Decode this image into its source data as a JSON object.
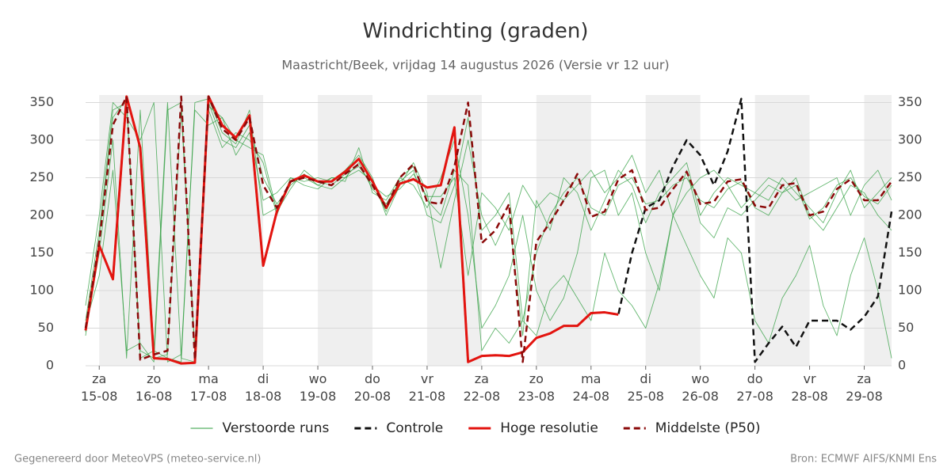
{
  "chart_data": {
    "type": "line",
    "title": "Windrichting (graden)",
    "subtitle": "Maastricht/Beek, vrijdag 14 augustus 2026 (Versie vr 12 uur)",
    "footer_left": "Gegenereerd door MeteoVPS (meteo-service.nl)",
    "footer_right": "Bron: ECMWF AIFS/KNMI Ens",
    "x": [
      -0.25,
      0,
      0.25,
      0.5,
      0.75,
      1,
      1.25,
      1.5,
      1.75,
      2,
      2.25,
      2.5,
      2.75,
      3,
      3.25,
      3.5,
      3.75,
      4,
      4.25,
      4.5,
      4.75,
      5,
      5.25,
      5.5,
      5.75,
      6,
      6.25,
      6.5,
      6.75,
      7,
      7.25,
      7.5,
      7.75,
      8,
      8.25,
      8.5,
      8.75,
      9,
      9.25,
      9.5,
      9.75,
      10,
      10.25,
      10.5,
      10.75,
      11,
      11.25,
      11.5,
      11.75,
      12,
      12.25,
      12.5,
      12.75,
      13,
      13.25,
      13.5,
      13.75,
      14,
      14.25,
      14.5
    ],
    "xlim": [
      -0.25,
      14.5
    ],
    "xticks": [
      {
        "value": 0,
        "label": "za\n15-08"
      },
      {
        "value": 1,
        "label": "zo\n16-08"
      },
      {
        "value": 2,
        "label": "ma\n17-08"
      },
      {
        "value": 3,
        "label": "di\n18-08"
      },
      {
        "value": 4,
        "label": "wo\n19-08"
      },
      {
        "value": 5,
        "label": "do\n20-08"
      },
      {
        "value": 6,
        "label": "vr\n21-08"
      },
      {
        "value": 7,
        "label": "za\n22-08"
      },
      {
        "value": 8,
        "label": "zo\n23-08"
      },
      {
        "value": 9,
        "label": "ma\n24-08"
      },
      {
        "value": 10,
        "label": "di\n25-08"
      },
      {
        "value": 11,
        "label": "wo\n26-08"
      },
      {
        "value": 12,
        "label": "do\n27-08"
      },
      {
        "value": 13,
        "label": "vr\n28-08"
      },
      {
        "value": 14,
        "label": "za\n29-08"
      }
    ],
    "ylim": [
      0,
      360
    ],
    "yticks": [
      0,
      50,
      100,
      150,
      200,
      250,
      300,
      350
    ],
    "grid": true,
    "ensemble": {
      "name": "Verstoorde runs",
      "color": "#2e9e3e",
      "members": [
        [
          60,
          180,
          340,
          350,
          20,
          10,
          15,
          340,
          20,
          350,
          300,
          290,
          320,
          250,
          215,
          240,
          255,
          240,
          235,
          250,
          270,
          235,
          215,
          245,
          260,
          200,
          190,
          240,
          330,
          180,
          200,
          230,
          60,
          150,
          200,
          230,
          250,
          210,
          200,
          240,
          250,
          215,
          220,
          240,
          250,
          220,
          210,
          235,
          245,
          210,
          200,
          230,
          240,
          195,
          210,
          240,
          250,
          225,
          215,
          240
        ],
        [
          45,
          150,
          300,
          10,
          340,
          20,
          350,
          10,
          5,
          340,
          290,
          310,
          300,
          270,
          200,
          250,
          245,
          250,
          245,
          260,
          280,
          250,
          200,
          240,
          270,
          230,
          130,
          220,
          300,
          200,
          160,
          200,
          40,
          220,
          180,
          250,
          230,
          180,
          220,
          260,
          240,
          190,
          230,
          250,
          270,
          200,
          230,
          250,
          240,
          230,
          220,
          250,
          230,
          210,
          190,
          230,
          260,
          210,
          230,
          250
        ],
        [
          80,
          200,
          350,
          330,
          300,
          350,
          5,
          15,
          340,
          320,
          330,
          280,
          310,
          220,
          230,
          250,
          240,
          235,
          250,
          245,
          290,
          230,
          220,
          250,
          240,
          210,
          250,
          300,
          200,
          50,
          80,
          120,
          200,
          100,
          60,
          90,
          150,
          250,
          260,
          200,
          230,
          150,
          100,
          200,
          260,
          190,
          170,
          210,
          200,
          220,
          240,
          230,
          250,
          200,
          180,
          210,
          240,
          230,
          200,
          180
        ],
        [
          55,
          120,
          260,
          20,
          30,
          5,
          340,
          350,
          15,
          345,
          330,
          300,
          290,
          280,
          205,
          235,
          260,
          245,
          240,
          255,
          265,
          240,
          225,
          235,
          255,
          225,
          225,
          250,
          120,
          230,
          210,
          180,
          240,
          210,
          230,
          220,
          240,
          260,
          230,
          250,
          280,
          230,
          260,
          200,
          230,
          250,
          260,
          240,
          210,
          230,
          250,
          240,
          220,
          230,
          240,
          250,
          200,
          240,
          260,
          220
        ],
        [
          40,
          170,
          330,
          355,
          10,
          20,
          10,
          5,
          350,
          355,
          310,
          295,
          340,
          200,
          210,
          245,
          250,
          240,
          250,
          250,
          260,
          245,
          205,
          250,
          265,
          220,
          200,
          260,
          240,
          20,
          50,
          30,
          60,
          40,
          100,
          120,
          90,
          60,
          150,
          100,
          80,
          50,
          110,
          200,
          160,
          120,
          90,
          170,
          150,
          60,
          30,
          90,
          120,
          160,
          80,
          40,
          120,
          170,
          100,
          10
        ]
      ]
    },
    "series": [
      {
        "name": "Controle",
        "color": "#111111",
        "dash": true,
        "values": [
          47,
          160,
          115,
          358,
          290,
          10,
          9,
          3,
          4,
          358,
          320,
          303,
          333,
          133,
          205,
          245,
          253,
          245,
          245,
          258,
          275,
          245,
          210,
          242,
          248,
          237,
          240,
          317,
          5,
          13,
          14,
          13,
          18,
          37,
          43,
          53,
          53,
          70,
          71,
          68,
          150,
          210,
          220,
          265,
          300,
          280,
          240,
          285,
          355,
          5,
          30,
          52,
          25,
          60,
          60,
          60,
          48,
          65,
          92,
          205
        ]
      },
      {
        "name": "Hoge resolutie",
        "color": "#e3140f",
        "dash": false,
        "values": [
          47,
          160,
          115,
          358,
          290,
          10,
          9,
          3,
          4,
          358,
          320,
          303,
          333,
          133,
          205,
          245,
          253,
          245,
          245,
          258,
          275,
          245,
          210,
          242,
          248,
          237,
          240,
          317,
          5,
          13,
          14,
          13,
          18,
          37,
          43,
          53,
          53,
          70,
          71,
          68,
          null,
          null,
          null,
          null,
          null,
          null,
          null,
          null,
          null,
          null,
          null,
          null,
          null,
          null,
          null,
          null,
          null,
          null,
          null,
          null
        ]
      },
      {
        "name": "Middelste (P50)",
        "color": "#8b0a0a",
        "dash": true,
        "values": [
          50,
          165,
          320,
          358,
          8,
          15,
          20,
          358,
          8,
          358,
          315,
          300,
          330,
          240,
          210,
          245,
          250,
          245,
          240,
          255,
          268,
          240,
          210,
          250,
          268,
          218,
          215,
          265,
          350,
          163,
          180,
          215,
          5,
          165,
          190,
          220,
          255,
          198,
          205,
          248,
          260,
          207,
          210,
          235,
          258,
          215,
          218,
          245,
          248,
          213,
          210,
          240,
          243,
          200,
          205,
          235,
          248,
          220,
          220,
          245
        ]
      }
    ]
  }
}
